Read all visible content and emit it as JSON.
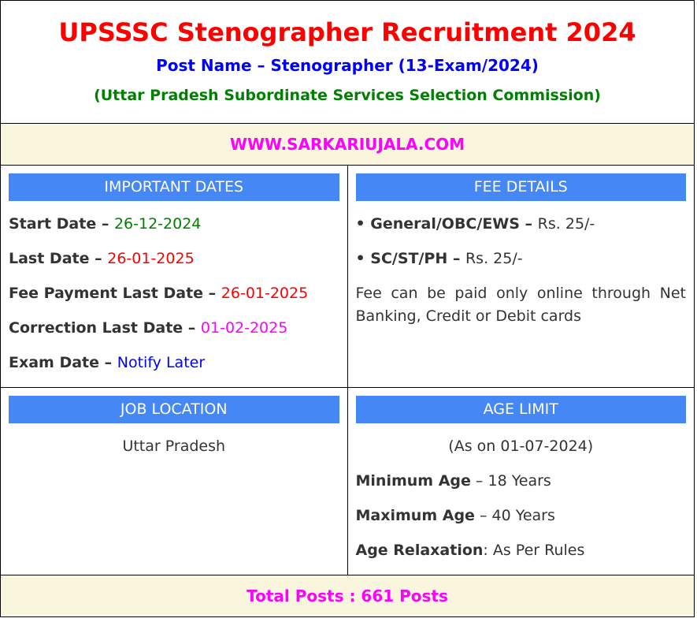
{
  "header": {
    "title": "UPSSSC Stenographer Recruitment 2024",
    "post_name": "Post Name – Stenographer (13-Exam/2024)",
    "commission": "(Uttar Pradesh Subordinate Services Selection Commission)"
  },
  "website": "WWW.SARKARIUJALA.COM",
  "important_dates": {
    "heading": "IMPORTANT DATES",
    "items": [
      {
        "label": "Start Date",
        "value": "26-12-2024",
        "color": "#008000"
      },
      {
        "label": "Last Date",
        "value": "26-01-2025",
        "color": "#ff0000"
      },
      {
        "label": "Fee Payment Last Date",
        "value": "26-01-2025",
        "color": "#ff0000"
      },
      {
        "label": "Correction Last Date",
        "value": "01-02-2025",
        "color": "#ff00ff"
      },
      {
        "label": "Exam Date",
        "value": "Notify Later",
        "color": "#0000ff"
      }
    ]
  },
  "fee_details": {
    "heading": "FEE DETAILS",
    "items": [
      {
        "label": "• General/OBC/EWS",
        "value": "Rs. 25/-"
      },
      {
        "label": "• SC/ST/PH",
        "value": "Rs. 25/-"
      }
    ],
    "note": "Fee can be paid only online through Net Banking, Credit or Debit cards"
  },
  "job_location": {
    "heading": "JOB LOCATION",
    "value": "Uttar Pradesh"
  },
  "age_limit": {
    "heading": "AGE LIMIT",
    "as_on": "(As on 01-07-2024)",
    "items": [
      {
        "label": "Minimum Age",
        "sep": " – ",
        "value": "18 Years"
      },
      {
        "label": "Maximum Age",
        "sep": " – ",
        "value": "40 Years"
      },
      {
        "label": "Age Relaxation",
        "sep": ": ",
        "value": "As Per Rules"
      }
    ]
  },
  "total_posts": "Total Posts : 661 Posts",
  "dash": " – "
}
